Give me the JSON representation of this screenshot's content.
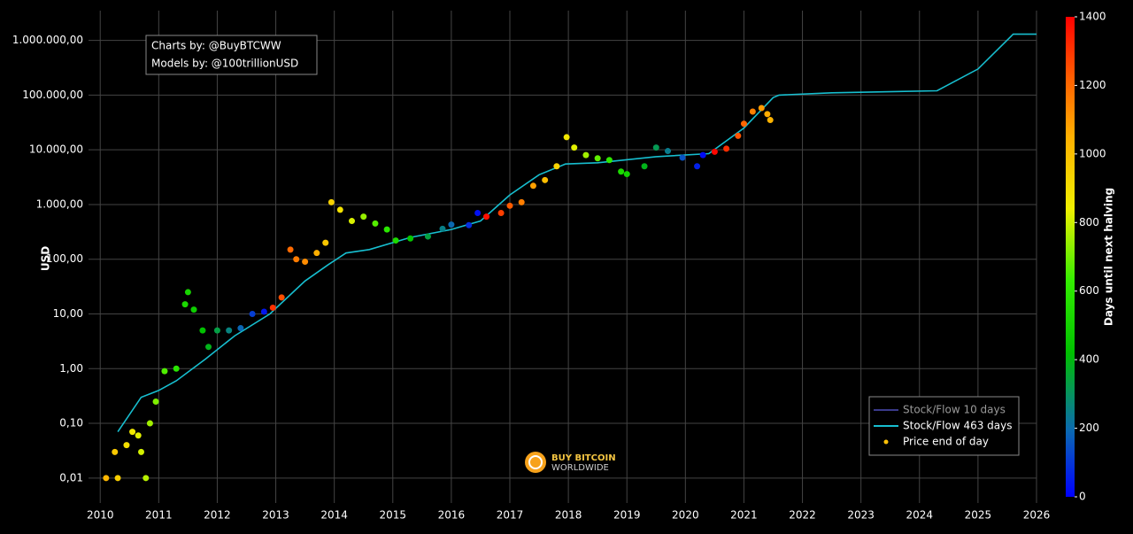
{
  "chart_data": {
    "type": "scatter",
    "annotations": [
      "Charts by: @BuyBTCWW",
      "Models by: @100trillionUSD"
    ],
    "watermark": [
      "BUY BITCOIN",
      "WORLDWIDE"
    ],
    "ylabel": "USD",
    "log_y": true,
    "grid": true,
    "legend_position": "bottom-right",
    "xlim": [
      2009.8,
      2026
    ],
    "xticks": [
      2010,
      2011,
      2012,
      2013,
      2014,
      2015,
      2016,
      2017,
      2018,
      2019,
      2020,
      2021,
      2022,
      2023,
      2024,
      2025,
      2026
    ],
    "ylim": [
      0.0035,
      3500000
    ],
    "yticks": [
      {
        "value": 0.01,
        "label": "0,01"
      },
      {
        "value": 0.1,
        "label": "0,10"
      },
      {
        "value": 1,
        "label": "1,00"
      },
      {
        "value": 10,
        "label": "10,00"
      },
      {
        "value": 100,
        "label": "100,00"
      },
      {
        "value": 1000,
        "label": "1.000,00"
      },
      {
        "value": 10000,
        "label": "10.000,00"
      },
      {
        "value": 100000,
        "label": "100.000,00"
      },
      {
        "value": 1000000,
        "label": "1.000.000,00"
      }
    ],
    "colorbar": {
      "title": "Days until next halving",
      "lim": [
        0,
        1400
      ],
      "ticks": [
        0,
        200,
        400,
        600,
        800,
        1000,
        1200,
        1400
      ],
      "colorscale": [
        [
          0,
          "#0000ff"
        ],
        [
          0.14,
          "#0b6bb0"
        ],
        [
          0.3,
          "#00c000"
        ],
        [
          0.45,
          "#33ee00"
        ],
        [
          0.6,
          "#f0f000"
        ],
        [
          0.75,
          "#ffb000"
        ],
        [
          0.87,
          "#ff6000"
        ],
        [
          1,
          "#ff0000"
        ]
      ]
    },
    "series": [
      {
        "name": "Stock/Flow 10 days",
        "color": "#3a3a8a",
        "visible": false
      },
      {
        "name": "Stock/Flow 463 days",
        "color": "#17becf",
        "x": [
          2010.3,
          2010.7,
          2011.0,
          2011.3,
          2011.8,
          2012.3,
          2012.9,
          2013.5,
          2013.9,
          2014.2,
          2014.6,
          2015.3,
          2016.0,
          2016.5,
          2017.0,
          2017.5,
          2017.95,
          2018.5,
          2019.5,
          2020.4,
          2021.0,
          2021.5,
          2021.6,
          2022.5,
          2024.3,
          2025.0,
          2025.6,
          2026.0
        ],
        "values": [
          0.07,
          0.3,
          0.4,
          0.6,
          1.5,
          4,
          10,
          40,
          80,
          130,
          150,
          250,
          350,
          500,
          1500,
          3500,
          5500,
          5800,
          7500,
          8500,
          25000,
          90000,
          100000,
          110000,
          120000,
          300000,
          1300000,
          1300000
        ]
      },
      {
        "name": "Price end of day",
        "color": "#ffc107",
        "x": [
          2010.1,
          2010.25,
          2010.3,
          2010.45,
          2010.55,
          2010.65,
          2010.7,
          2010.78,
          2010.85,
          2010.95,
          2011.1,
          2011.3,
          2011.45,
          2011.5,
          2011.6,
          2011.75,
          2011.85,
          2012.0,
          2012.2,
          2012.4,
          2012.6,
          2012.8,
          2012.95,
          2013.1,
          2013.25,
          2013.35,
          2013.5,
          2013.7,
          2013.85,
          2013.95,
          2014.1,
          2014.3,
          2014.5,
          2014.7,
          2014.9,
          2015.05,
          2015.3,
          2015.6,
          2015.85,
          2016.0,
          2016.3,
          2016.45,
          2016.6,
          2016.85,
          2017.0,
          2017.2,
          2017.4,
          2017.6,
          2017.8,
          2017.97,
          2018.1,
          2018.3,
          2018.5,
          2018.7,
          2018.9,
          2019.0,
          2019.3,
          2019.5,
          2019.7,
          2019.95,
          2020.2,
          2020.3,
          2020.5,
          2020.7,
          2020.9,
          2021.0,
          2021.15,
          2021.3,
          2021.4,
          2021.45
        ],
        "values": [
          0.01,
          0.03,
          0.01,
          0.04,
          0.07,
          0.06,
          0.03,
          0.01,
          0.1,
          0.25,
          0.9,
          1,
          15,
          25,
          12,
          5,
          2.5,
          5,
          5,
          5.5,
          10,
          11,
          13,
          20,
          150,
          100,
          90,
          130,
          200,
          1100,
          800,
          500,
          600,
          450,
          350,
          220,
          240,
          260,
          360,
          430,
          420,
          700,
          600,
          700,
          950,
          1100,
          2200,
          2800,
          5000,
          17000,
          11000,
          8000,
          7000,
          6500,
          4000,
          3600,
          5000,
          11000,
          9500,
          7200,
          5000,
          8000,
          9200,
          10500,
          18000,
          30000,
          50000,
          58000,
          45000,
          35000
        ],
        "color_values": [
          1026,
          971,
          953,
          898,
          861,
          825,
          807,
          777,
          752,
          715,
          661,
          588,
          533,
          515,
          478,
          423,
          387,
          332,
          259,
          186,
          113,
          40,
          1307,
          1252,
          1198,
          1161,
          1125,
          1052,
          978,
          942,
          887,
          814,
          741,
          668,
          595,
          540,
          449,
          339,
          248,
          193,
          84,
          29,
          1372,
          1281,
          1227,
          1154,
          1081,
          1007,
          934,
          872,
          825,
          752,
          679,
          606,
          533,
          496,
          387,
          314,
          241,
          150,
          58,
          22,
          1387,
          1314,
          1241,
          1205,
          1150,
          1095,
          1059,
          1040
        ]
      }
    ]
  }
}
